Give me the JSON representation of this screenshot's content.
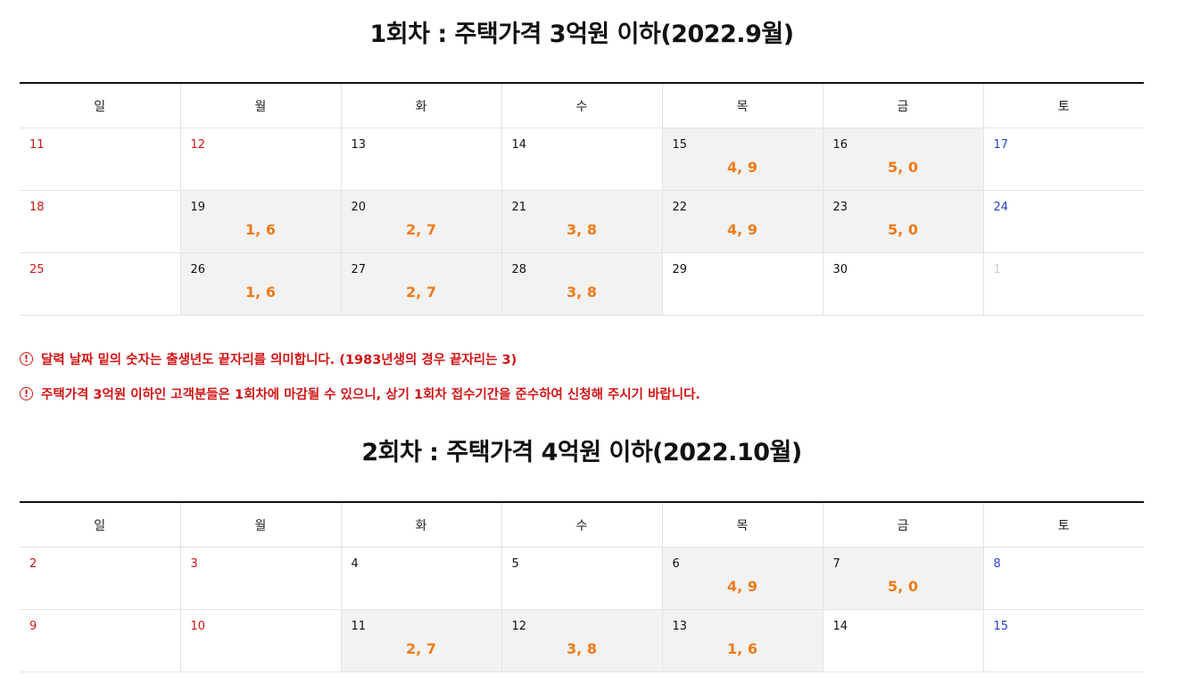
{
  "round1": {
    "title": "1회차 : 주택가격 3억원 이하(2022.9월)",
    "weekdays": [
      "일",
      "월",
      "화",
      "수",
      "목",
      "금",
      "토"
    ],
    "weeks": [
      [
        {
          "day": "11",
          "type": "sun",
          "digits": ""
        },
        {
          "day": "12",
          "type": "sun",
          "digits": ""
        },
        {
          "day": "13",
          "type": "",
          "digits": ""
        },
        {
          "day": "14",
          "type": "",
          "digits": ""
        },
        {
          "day": "15",
          "type": "",
          "digits": "4, 9"
        },
        {
          "day": "16",
          "type": "",
          "digits": "5, 0"
        },
        {
          "day": "17",
          "type": "sat",
          "digits": ""
        }
      ],
      [
        {
          "day": "18",
          "type": "sun",
          "digits": ""
        },
        {
          "day": "19",
          "type": "",
          "digits": "1, 6"
        },
        {
          "day": "20",
          "type": "",
          "digits": "2, 7"
        },
        {
          "day": "21",
          "type": "",
          "digits": "3, 8"
        },
        {
          "day": "22",
          "type": "",
          "digits": "4, 9"
        },
        {
          "day": "23",
          "type": "",
          "digits": "5, 0"
        },
        {
          "day": "24",
          "type": "sat",
          "digits": ""
        }
      ],
      [
        {
          "day": "25",
          "type": "sun",
          "digits": ""
        },
        {
          "day": "26",
          "type": "",
          "digits": "1, 6"
        },
        {
          "day": "27",
          "type": "",
          "digits": "2, 7"
        },
        {
          "day": "28",
          "type": "",
          "digits": "3, 8"
        },
        {
          "day": "29",
          "type": "",
          "digits": ""
        },
        {
          "day": "30",
          "type": "",
          "digits": ""
        },
        {
          "day": "1",
          "type": "muted",
          "digits": ""
        }
      ]
    ]
  },
  "notices": [
    {
      "icon": "!",
      "text": "달력 날짜 밑의 숫자는 출생년도 끝자리를 의미합니다. (1983년생의 경우 끝자리는 3)"
    },
    {
      "icon": "!",
      "text": "주택가격 3억원 이하인 고객분들은 1회차에 마감될 수 있으니, 상기 1회차 접수기간을 준수하여 신청해 주시기 바랍니다."
    }
  ],
  "round2": {
    "title": "2회차 : 주택가격 4억원 이하(2022.10월)",
    "weekdays": [
      "일",
      "월",
      "화",
      "수",
      "목",
      "금",
      "토"
    ],
    "weeks": [
      [
        {
          "day": "2",
          "type": "sun",
          "digits": ""
        },
        {
          "day": "3",
          "type": "sun",
          "digits": ""
        },
        {
          "day": "4",
          "type": "",
          "digits": ""
        },
        {
          "day": "5",
          "type": "",
          "digits": ""
        },
        {
          "day": "6",
          "type": "",
          "digits": "4, 9"
        },
        {
          "day": "7",
          "type": "",
          "digits": "5, 0"
        },
        {
          "day": "8",
          "type": "sat",
          "digits": ""
        }
      ],
      [
        {
          "day": "9",
          "type": "sun",
          "digits": ""
        },
        {
          "day": "10",
          "type": "sun",
          "digits": ""
        },
        {
          "day": "11",
          "type": "",
          "digits": "2, 7"
        },
        {
          "day": "12",
          "type": "",
          "digits": "3, 8"
        },
        {
          "day": "13",
          "type": "",
          "digits": "1, 6"
        },
        {
          "day": "14",
          "type": "",
          "digits": ""
        },
        {
          "day": "15",
          "type": "sat",
          "digits": ""
        }
      ]
    ]
  },
  "colors": {
    "holiday": "#d01515",
    "saturday": "#2744c7",
    "digits": "#f07a18",
    "active_cell": "#f2f2f2",
    "notice": "#d01515"
  },
  "icons": {
    "notice": "exclamation-circle-icon"
  }
}
